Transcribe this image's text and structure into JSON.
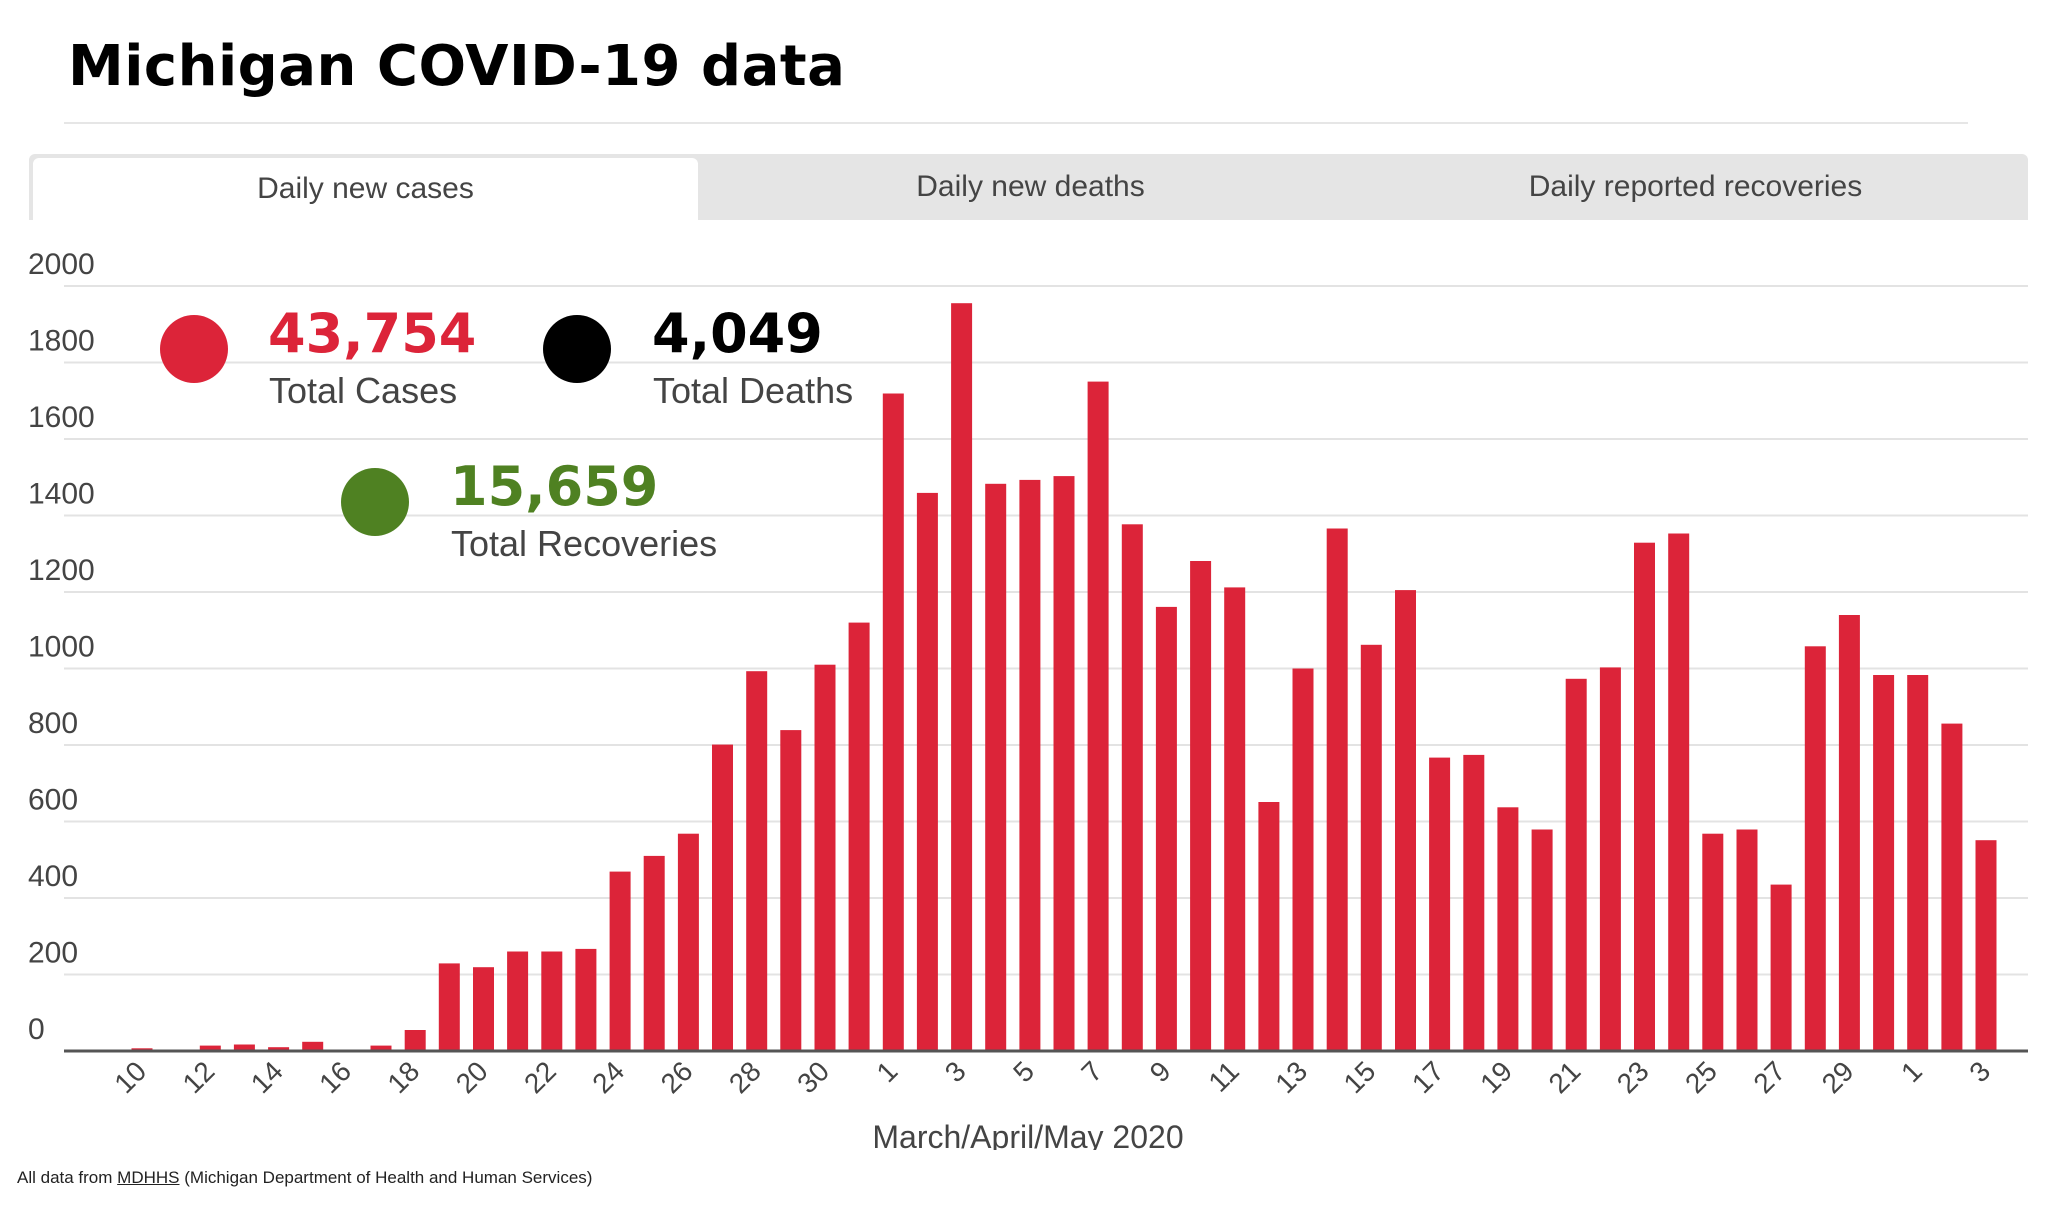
{
  "title": "Michigan COVID-19 data",
  "tabs": [
    {
      "label": "Daily new cases",
      "active": true
    },
    {
      "label": "Daily new deaths",
      "active": false
    },
    {
      "label": "Daily reported recoveries",
      "active": false
    }
  ],
  "stats": {
    "cases": {
      "value": "43,754",
      "label": "Total Cases",
      "color": "#dc2439"
    },
    "deaths": {
      "value": "4,049",
      "label": "Total Deaths",
      "color": "#000000"
    },
    "recoveries": {
      "value": "15,659",
      "label": "Total Recoveries",
      "color": "#4f8122"
    }
  },
  "footer": {
    "prefix": "All data from",
    "link": "MDHHS",
    "suffix": "(Michigan Department of Health and Human Services)"
  },
  "chart_data": {
    "type": "bar",
    "title": "Daily new cases",
    "xlabel": "March/April/May 2020",
    "ylabel": "",
    "ylim": [
      0,
      2000
    ],
    "yticks": [
      0,
      200,
      400,
      600,
      800,
      1000,
      1200,
      1400,
      1600,
      1800,
      2000
    ],
    "grid": true,
    "bar_color": "#dc2439",
    "categories": [
      "10",
      "11",
      "12",
      "13",
      "14",
      "15",
      "16",
      "17",
      "18",
      "19",
      "20",
      "21",
      "22",
      "23",
      "24",
      "25",
      "26",
      "27",
      "28",
      "29",
      "30",
      "31",
      "1",
      "2",
      "3",
      "4",
      "5",
      "6",
      "7",
      "8",
      "9",
      "10",
      "11",
      "12",
      "13",
      "14",
      "15",
      "16",
      "17",
      "18",
      "19",
      "20",
      "21",
      "22",
      "23",
      "24",
      "25",
      "26",
      "27",
      "28",
      "29",
      "30",
      "1",
      "2",
      "3"
    ],
    "tick_labels": [
      "10",
      "12",
      "14",
      "16",
      "18",
      "20",
      "22",
      "24",
      "26",
      "28",
      "30",
      "1",
      "3",
      "5",
      "7",
      "9",
      "11",
      "13",
      "15",
      "17",
      "19",
      "21",
      "23",
      "25",
      "27",
      "29",
      "1",
      "3"
    ],
    "values": [
      7,
      0,
      14,
      17,
      10,
      24,
      0,
      14,
      55,
      229,
      219,
      260,
      260,
      267,
      469,
      510,
      568,
      801,
      993,
      839,
      1010,
      1120,
      1719,
      1459,
      1955,
      1483,
      1493,
      1503,
      1750,
      1377,
      1161,
      1281,
      1212,
      651,
      1000,
      1366,
      1062,
      1205,
      767,
      774,
      637,
      579,
      973,
      1003,
      1329,
      1353,
      568,
      579,
      435,
      1058,
      1140,
      983,
      983,
      856,
      551
    ]
  }
}
